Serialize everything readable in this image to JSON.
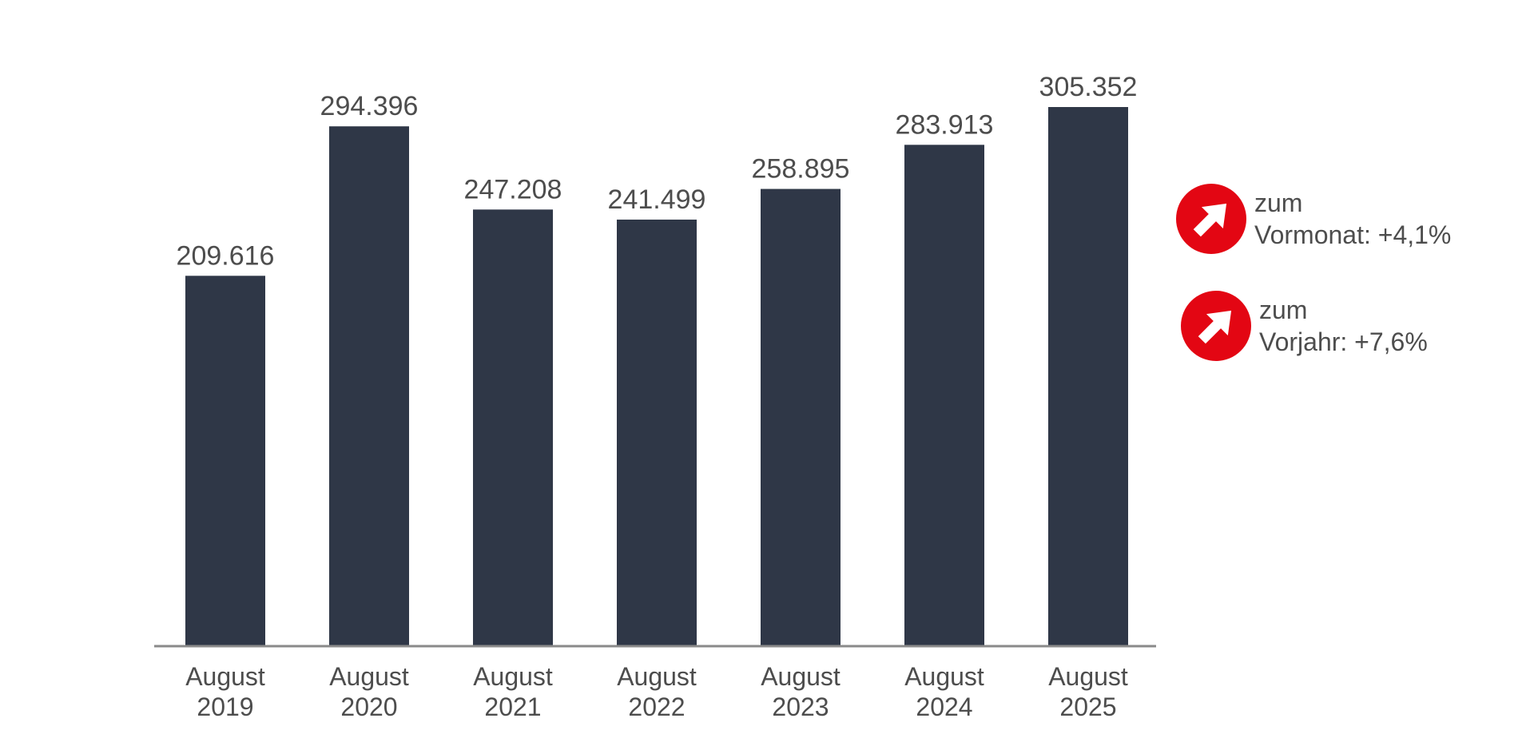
{
  "chart_data": {
    "type": "bar",
    "categories": [
      [
        "August",
        "2019"
      ],
      [
        "August",
        "2020"
      ],
      [
        "August",
        "2021"
      ],
      [
        "August",
        "2022"
      ],
      [
        "August",
        "2023"
      ],
      [
        "August",
        "2024"
      ],
      [
        "August",
        "2025"
      ]
    ],
    "values": [
      209616,
      294396,
      247208,
      241499,
      258895,
      283913,
      305352
    ],
    "value_labels": [
      "209.616",
      "294.396",
      "247.208",
      "241.499",
      "258.895",
      "283.913",
      "305.352"
    ],
    "ylim": [
      0,
      305352
    ],
    "grid": false,
    "bar_color": "#2f3747",
    "axis_color": "#8a8a8a"
  },
  "changes": [
    {
      "line1": "zum",
      "line2": "Vormonat: +4,1%",
      "icon": "arrow-up-right-icon",
      "color": "#e30613"
    },
    {
      "line1": "zum",
      "line2": "Vorjahr: +7,6%",
      "icon": "arrow-up-right-icon",
      "color": "#e30613"
    }
  ]
}
